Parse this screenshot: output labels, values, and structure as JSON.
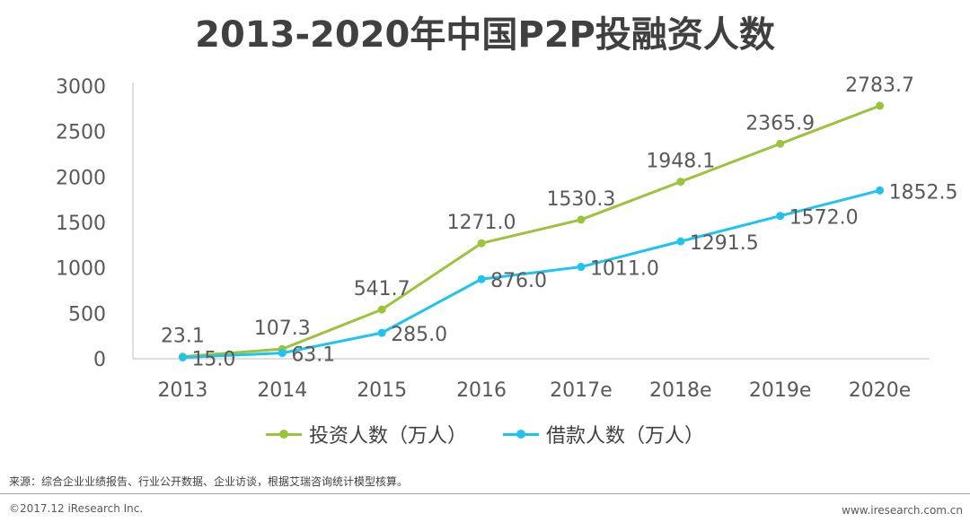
{
  "chart_data": {
    "type": "line",
    "title": "2013-2020年中国P2P投融资人数",
    "categories": [
      "2013",
      "2014",
      "2015",
      "2016",
      "2017e",
      "2018e",
      "2019e",
      "2020e"
    ],
    "ylim": [
      0,
      3000
    ],
    "yticks": [
      "0",
      "500",
      "1000",
      "1500",
      "2000",
      "2500",
      "3000"
    ],
    "ytick_values": [
      0,
      500,
      1000,
      1500,
      2000,
      2500,
      3000
    ],
    "series": [
      {
        "name": "投资人数（万人）",
        "color": "#9bc33b",
        "values": [
          23.1,
          107.3,
          541.7,
          1271.0,
          1530.3,
          1948.1,
          2365.9,
          2783.7
        ],
        "labels": [
          "23.1",
          "107.3",
          "541.7",
          "1271.0",
          "1530.3",
          "1948.1",
          "2365.9",
          "2783.7"
        ]
      },
      {
        "name": "借款人数（万人）",
        "color": "#1fc4ee",
        "values": [
          15.0,
          63.1,
          285.0,
          876.0,
          1011.0,
          1291.5,
          1572.0,
          1852.5
        ],
        "labels": [
          "15.0",
          "63.1",
          "285.0",
          "876.0",
          "1011.0",
          "1291.5",
          "1572.0",
          "1852.5"
        ]
      }
    ],
    "legend": "bottom"
  },
  "source_note": "来源：综合企业业绩报告、行业公开数据、企业访谈，根据艾瑞咨询统计模型核算。",
  "copyright": "©2017.12 iResearch Inc.",
  "website": "www.iresearch.com.cn"
}
